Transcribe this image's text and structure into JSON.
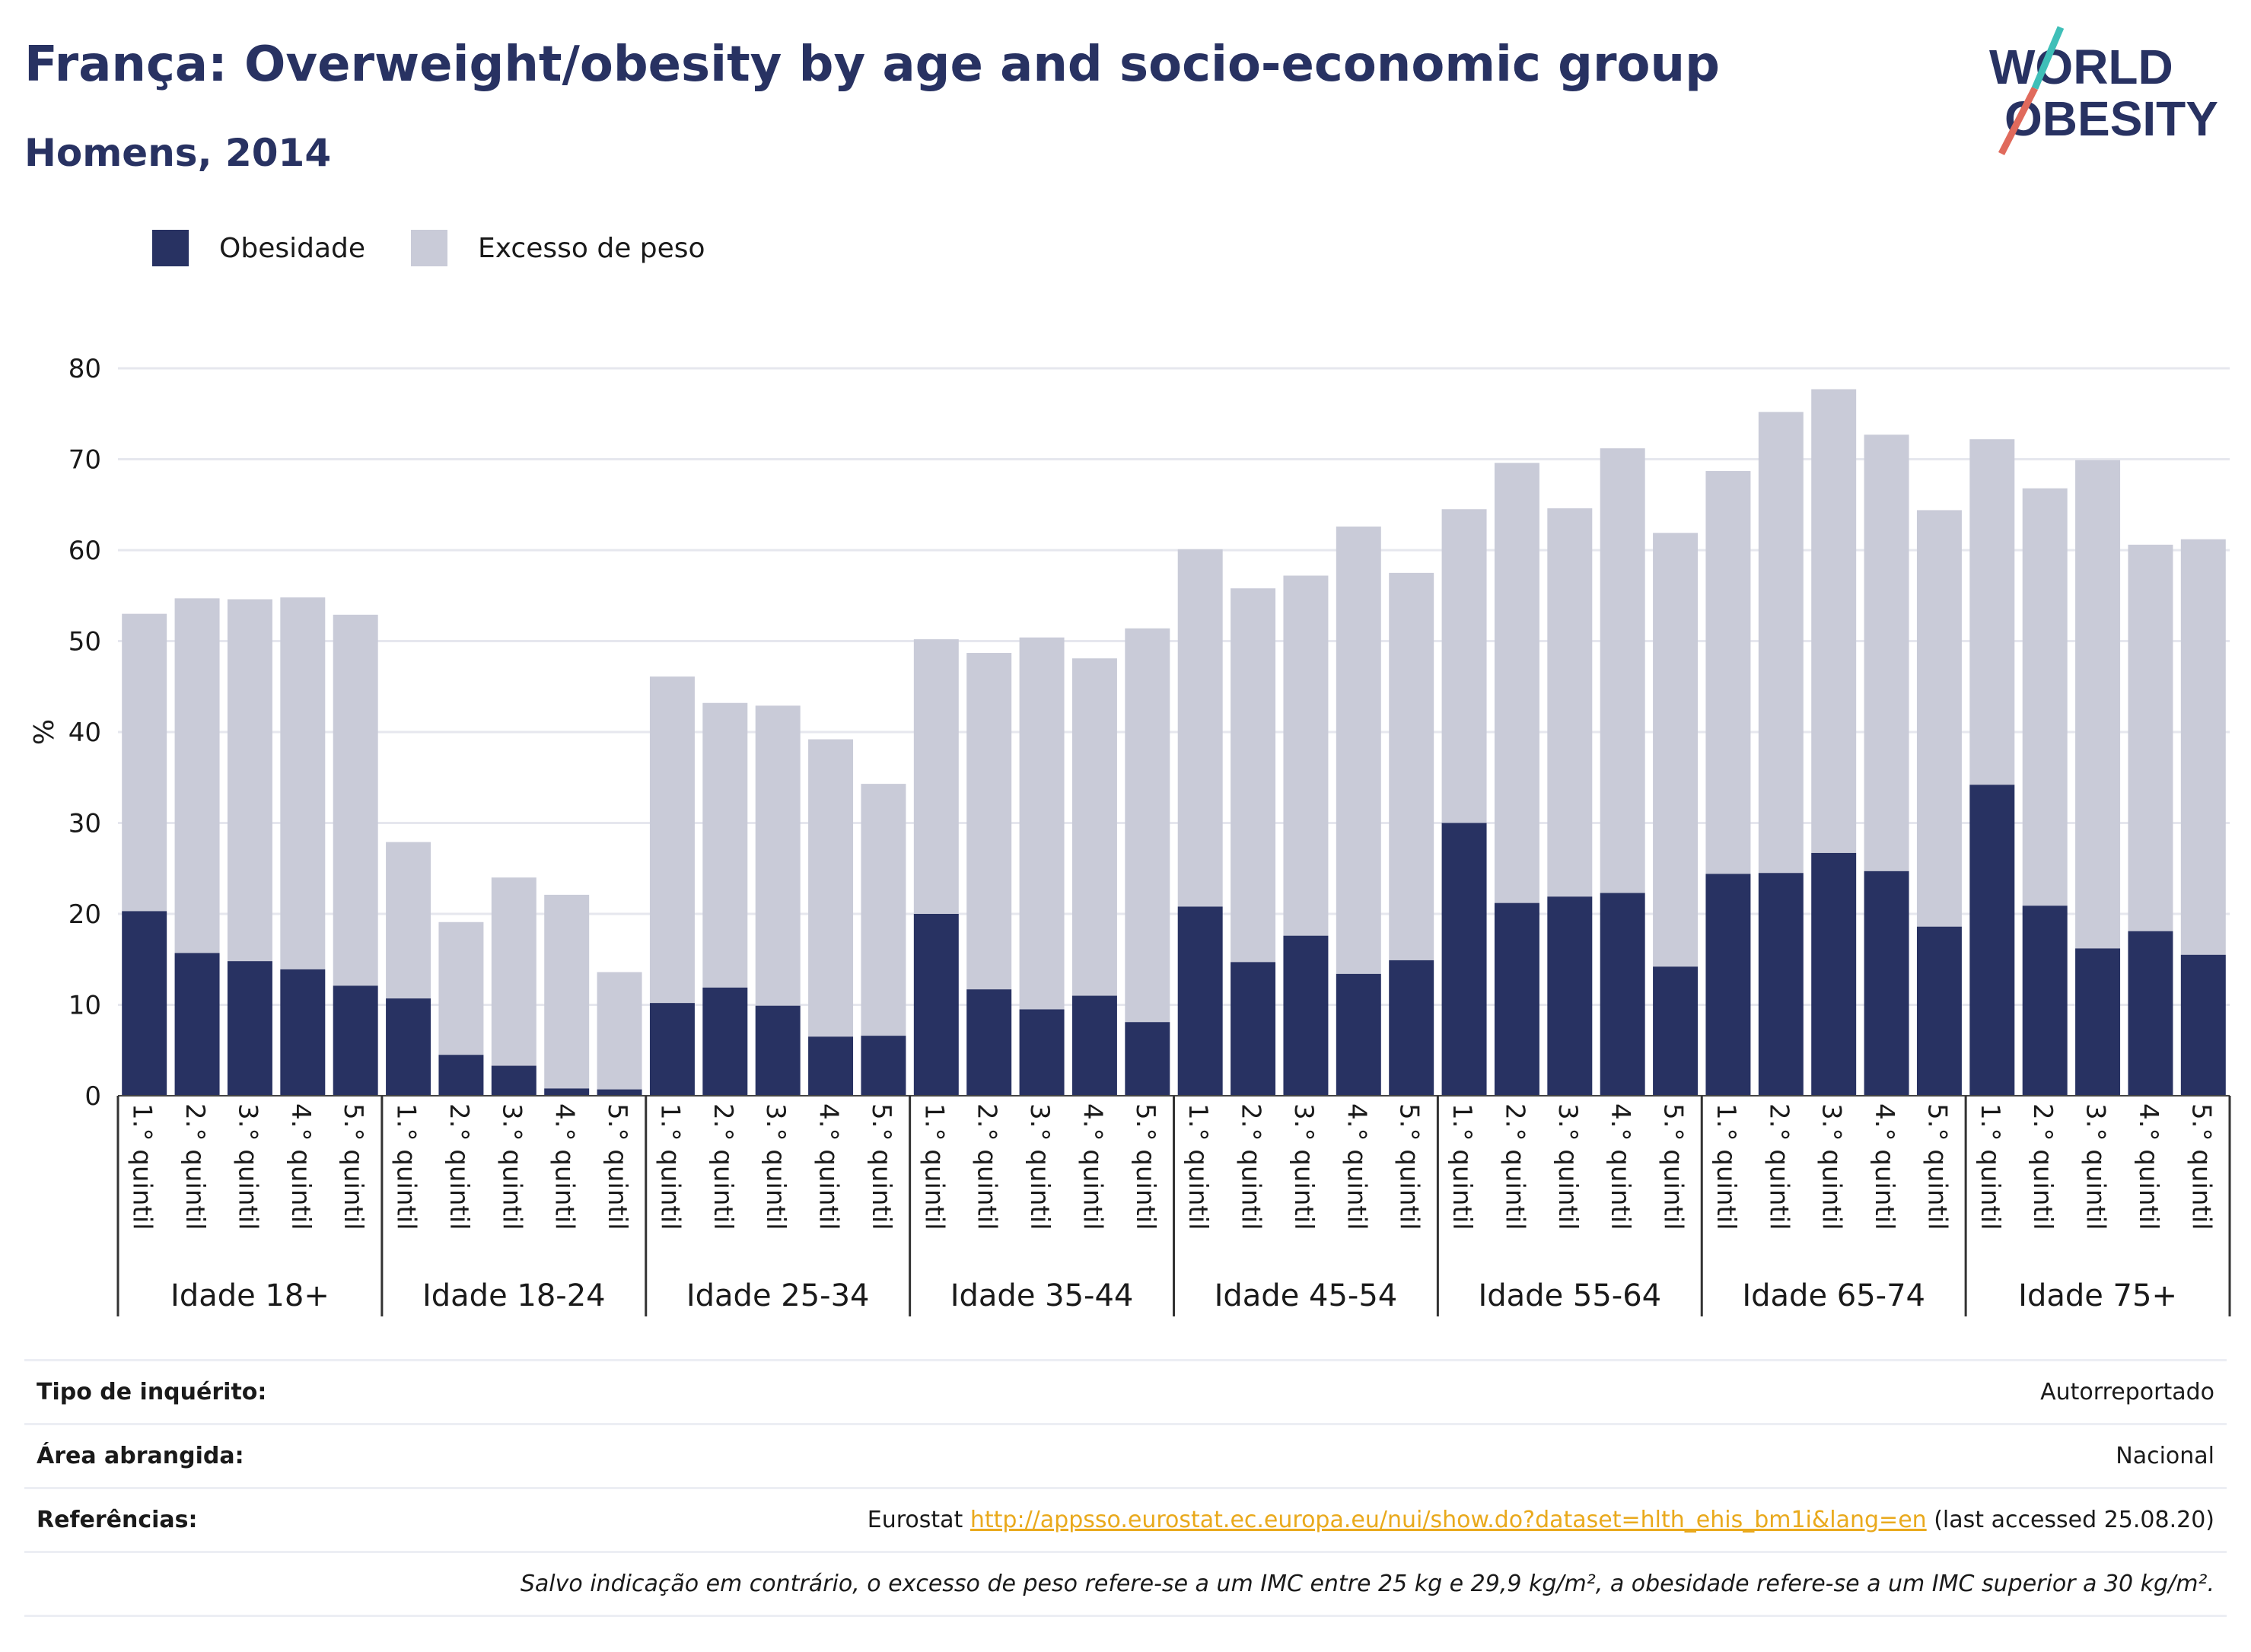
{
  "header": {
    "title": "França: Overweight/obesity by age and socio-economic group",
    "subtitle": "Homens, 2014"
  },
  "logo": {
    "line1": "WORLD",
    "line2": "OBESITY"
  },
  "colors": {
    "obesity": "#283262",
    "overweight": "#c9cbd8",
    "accent_red": "#e06a5c",
    "accent_teal": "#3fbfb8",
    "link": "#e9a91c"
  },
  "legend": [
    {
      "label": "Obesidade",
      "color": "#283262"
    },
    {
      "label": "Excesso de peso",
      "color": "#c9cbd8"
    }
  ],
  "chart_data": {
    "type": "bar",
    "stacked": true,
    "ylabel": "%",
    "ylim": [
      0,
      80
    ],
    "yticks": [
      0,
      10,
      20,
      30,
      40,
      50,
      60,
      70,
      80
    ],
    "grid": true,
    "legend_position": "top-left",
    "sub_categories": [
      "1.° quintil",
      "2.° quintil",
      "3.° quintil",
      "4.° quintil",
      "5.° quintil"
    ],
    "groups": [
      "Idade 18+",
      "Idade 18-24",
      "Idade 25-34",
      "Idade 35-44",
      "Idade 45-54",
      "Idade 55-64",
      "Idade 65-74",
      "Idade 75+"
    ],
    "series": [
      {
        "name": "Obesidade",
        "values": [
          20.3,
          15.7,
          14.8,
          13.9,
          12.1,
          10.7,
          4.5,
          3.3,
          0.8,
          0.7,
          10.2,
          11.9,
          9.9,
          6.5,
          6.6,
          20.0,
          11.7,
          9.5,
          11.0,
          8.1,
          20.8,
          14.7,
          17.6,
          13.4,
          14.9,
          30.0,
          21.2,
          21.9,
          22.3,
          14.2,
          24.4,
          24.5,
          26.7,
          24.7,
          18.6,
          34.2,
          20.9,
          16.2,
          18.1,
          15.5
        ]
      },
      {
        "name": "Excesso de peso",
        "values": [
          32.7,
          39.0,
          39.8,
          40.9,
          40.8,
          17.2,
          14.6,
          20.7,
          21.3,
          12.9,
          35.9,
          31.3,
          33.0,
          32.7,
          27.7,
          30.2,
          37.0,
          40.9,
          37.1,
          43.3,
          39.3,
          41.1,
          39.6,
          49.2,
          42.6,
          34.5,
          48.4,
          42.7,
          48.9,
          47.7,
          44.3,
          50.7,
          51.0,
          48.0,
          45.8,
          38.0,
          45.9,
          53.7,
          42.5,
          45.7
        ]
      }
    ]
  },
  "info": {
    "survey_label": "Tipo de inquérito:",
    "survey_value": "Autorreportado",
    "area_label": "Área abrangida:",
    "area_value": "Nacional",
    "refs_label": "Referências:",
    "refs_prefix": "Eurostat",
    "refs_link": "http://appsso.eurostat.ec.europa.eu/nui/show.do?dataset=hlth_ehis_bm1i&lang=en",
    "refs_suffix": "(last accessed 25.08.20)",
    "note": "Salvo indicação em contrário, o excesso de peso refere-se a um IMC entre 25 kg e 29,9 kg/m², a obesidade refere-se a um IMC superior a 30 kg/m²."
  }
}
